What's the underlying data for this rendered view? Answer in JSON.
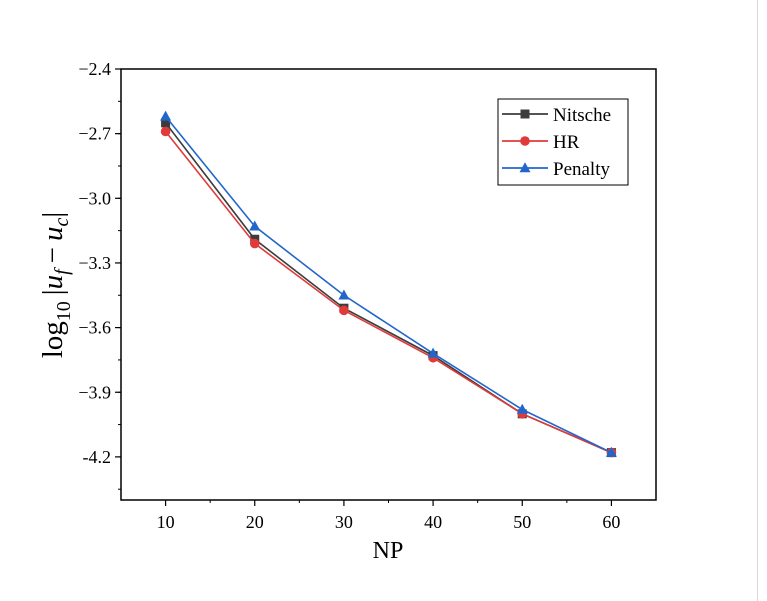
{
  "chart_data": {
    "type": "line",
    "x": [
      10,
      20,
      30,
      40,
      50,
      60
    ],
    "xticks": [
      10,
      20,
      30,
      40,
      50,
      60
    ],
    "xlim": [
      5,
      65
    ],
    "ylim": [
      -4.4,
      -2.4
    ],
    "yticks": [
      -2.4,
      -2.7,
      -3.0,
      -3.3,
      -3.6,
      -3.9,
      -4.2
    ],
    "ytick_labels": [
      "−2.4",
      "−2.7",
      "−3.0",
      "−3.3",
      "−3.6",
      "−3.9",
      "-4.2"
    ],
    "xlabel": "NP",
    "ylabel": "log10 |u_f − u_c|",
    "legend_position": "top-right",
    "grid": false,
    "series": [
      {
        "name": "Nitsche",
        "marker": "square",
        "color": "#3c3c3c",
        "values": [
          -2.65,
          -3.19,
          -3.51,
          -3.73,
          -4.0,
          -4.18
        ]
      },
      {
        "name": "HR",
        "marker": "circle",
        "color": "#e03a3a",
        "values": [
          -2.69,
          -3.21,
          -3.52,
          -3.74,
          -4.0,
          -4.18
        ]
      },
      {
        "name": "Penalty",
        "marker": "triangle",
        "color": "#2266cc",
        "values": [
          -2.62,
          -3.13,
          -3.45,
          -3.72,
          -3.98,
          -4.18
        ]
      }
    ]
  }
}
